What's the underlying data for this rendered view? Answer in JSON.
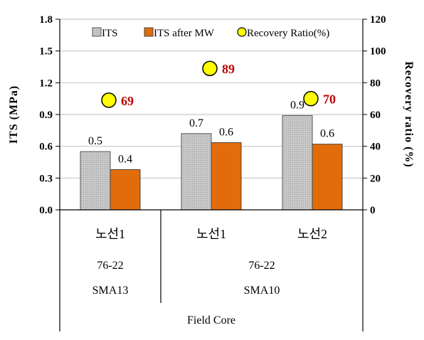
{
  "chart_data": {
    "type": "bar",
    "ylabel_left": "ITS (MPa)",
    "ylabel_right": "Recovery ratio (%)",
    "ylim_left": [
      0,
      1.8
    ],
    "ylim_right": [
      0,
      120
    ],
    "yticks_left": [
      "0.0",
      "0.3",
      "0.6",
      "0.9",
      "1.2",
      "1.5",
      "1.8"
    ],
    "yticks_right": [
      "0",
      "20",
      "40",
      "60",
      "80",
      "100",
      "120"
    ],
    "grid": true,
    "legend_position": "top",
    "categories": [
      "노선1",
      "노선1",
      "노선2"
    ],
    "group_row1": [
      "76-22",
      "76-22"
    ],
    "group_row2": [
      "SMA13",
      "SMA10"
    ],
    "xlabel": "Field Core",
    "series": [
      {
        "name": "ITS",
        "axis": "left",
        "values": [
          0.55,
          0.72,
          0.89
        ],
        "labels": [
          "0.5",
          "0.7",
          "0.9"
        ],
        "color": "#c8c8c8"
      },
      {
        "name": "ITS after MW",
        "axis": "left",
        "values": [
          0.38,
          0.635,
          0.62
        ],
        "labels": [
          "0.4",
          "0.6",
          "0.6"
        ],
        "color": "#e36c0a"
      },
      {
        "name": "Recovery Ratio(%)",
        "axis": "right",
        "type": "scatter",
        "values": [
          69,
          89,
          70
        ],
        "labels": [
          "69",
          "89",
          "70"
        ],
        "color": "#ffff00"
      }
    ],
    "ratio_label_color": "#c00000"
  }
}
